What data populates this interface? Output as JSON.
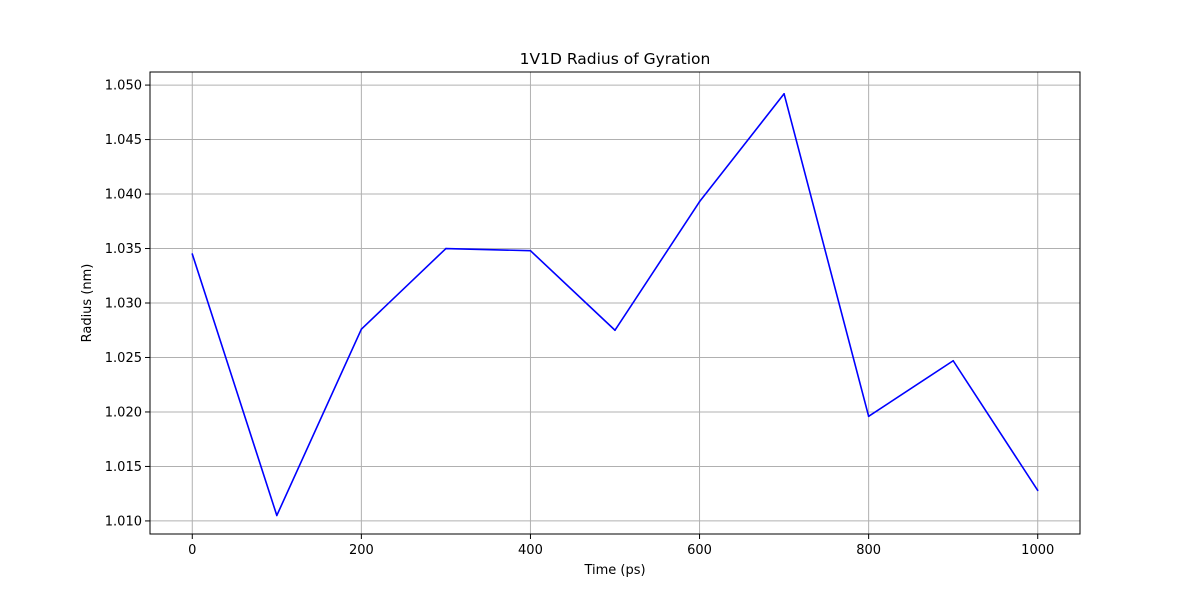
{
  "chart_data": {
    "type": "line",
    "title": "1V1D Radius of Gyration",
    "xlabel": "Time (ps)",
    "ylabel": "Radius (nm)",
    "xlim": [
      -50,
      1050
    ],
    "ylim": [
      1.0088,
      1.0512
    ],
    "xticks": [
      0,
      200,
      400,
      600,
      800,
      1000
    ],
    "yticks": [
      1.01,
      1.015,
      1.02,
      1.025,
      1.03,
      1.035,
      1.04,
      1.045,
      1.05
    ],
    "ytick_decimals": 3,
    "grid": true,
    "line_color": "#0000ff",
    "x": [
      0,
      100,
      200,
      300,
      400,
      500,
      600,
      700,
      800,
      900,
      1000
    ],
    "y": [
      1.0345,
      1.0105,
      1.0276,
      1.035,
      1.0348,
      1.0275,
      1.0393,
      1.0492,
      1.0196,
      1.0247,
      1.0128
    ]
  }
}
